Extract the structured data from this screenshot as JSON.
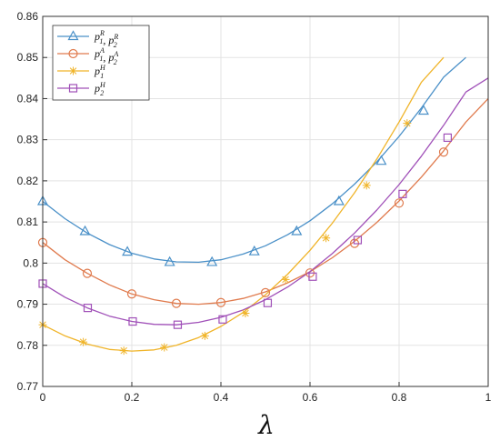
{
  "chart_data": {
    "type": "line",
    "title": "",
    "xlabel": "λ",
    "ylabel": "",
    "xlim": [
      0,
      1
    ],
    "ylim": [
      0.77,
      0.86
    ],
    "x_ticks": [
      0,
      0.2,
      0.4,
      0.6,
      0.8,
      1
    ],
    "x_tick_labels": [
      "0",
      "0.2",
      "0.4",
      "0.6",
      "0.8",
      "1"
    ],
    "y_ticks": [
      0.77,
      0.78,
      0.79,
      0.8,
      0.81,
      0.82,
      0.83,
      0.84,
      0.85,
      0.86
    ],
    "y_tick_labels": [
      "0.77",
      "0.78",
      "0.79",
      "0.8",
      "0.81",
      "0.82",
      "0.83",
      "0.84",
      "0.85",
      "0.86"
    ],
    "grid": true,
    "legend_position": "top-left",
    "series": [
      {
        "name": "p1R, p2R",
        "legend": {
          "a": "p",
          "a_sub": "1",
          "a_sup": "R",
          "b": "p",
          "b_sub": "2",
          "b_sup": "R"
        },
        "color": "#4a90c8",
        "marker": "triangle",
        "curve_x": [
          0,
          0.05,
          0.1,
          0.15,
          0.2,
          0.25,
          0.3,
          0.35,
          0.4,
          0.45,
          0.5,
          0.55,
          0.6,
          0.65,
          0.7,
          0.75,
          0.8,
          0.85,
          0.9,
          0.95
        ],
        "curve_y": [
          0.815,
          0.8108,
          0.8073,
          0.8045,
          0.8024,
          0.801,
          0.8003,
          0.8002,
          0.8008,
          0.8022,
          0.8042,
          0.8069,
          0.8103,
          0.8144,
          0.8192,
          0.8246,
          0.8308,
          0.8377,
          0.8452,
          0.85
        ],
        "marker_x": [
          0,
          0.095,
          0.19,
          0.285,
          0.38,
          0.475,
          0.57,
          0.665,
          0.76,
          0.855
        ],
        "marker_y": [
          0.815,
          0.8077,
          0.8027,
          0.8002,
          0.8002,
          0.8028,
          0.8077,
          0.815,
          0.8248,
          0.837
        ]
      },
      {
        "name": "p1A, p2A",
        "legend": {
          "a": "p",
          "a_sub": "1",
          "a_sup": "A",
          "b": "p",
          "b_sub": "2",
          "b_sup": "A"
        },
        "color": "#e07b4e",
        "marker": "circle",
        "curve_x": [
          0,
          0.05,
          0.1,
          0.15,
          0.2,
          0.25,
          0.3,
          0.35,
          0.4,
          0.45,
          0.5,
          0.55,
          0.6,
          0.65,
          0.7,
          0.75,
          0.8,
          0.85,
          0.9,
          0.95,
          1.0
        ],
        "curve_y": [
          0.805,
          0.8008,
          0.7975,
          0.7947,
          0.7925,
          0.7911,
          0.7902,
          0.79,
          0.7904,
          0.7914,
          0.793,
          0.7952,
          0.7979,
          0.8013,
          0.8053,
          0.8099,
          0.8151,
          0.8209,
          0.8273,
          0.8343,
          0.84
        ],
        "marker_x": [
          0,
          0.1,
          0.2,
          0.3,
          0.4,
          0.5,
          0.6,
          0.7,
          0.8,
          0.9
        ],
        "marker_y": [
          0.805,
          0.7975,
          0.7925,
          0.7902,
          0.7904,
          0.7928,
          0.7976,
          0.8048,
          0.8146,
          0.827
        ]
      },
      {
        "name": "p1H",
        "legend": {
          "a": "p",
          "a_sub": "1",
          "a_sup": "H",
          "b": "",
          "b_sub": "",
          "b_sup": ""
        },
        "color": "#f0b429",
        "marker": "asterisk",
        "curve_x": [
          0,
          0.05,
          0.1,
          0.15,
          0.2,
          0.25,
          0.3,
          0.35,
          0.4,
          0.45,
          0.5,
          0.55,
          0.6,
          0.65,
          0.7,
          0.75,
          0.8,
          0.85,
          0.9
        ],
        "curve_y": [
          0.785,
          0.7823,
          0.7803,
          0.779,
          0.7786,
          0.7789,
          0.78,
          0.7819,
          0.7846,
          0.788,
          0.7923,
          0.7973,
          0.8031,
          0.8097,
          0.8171,
          0.8253,
          0.8343,
          0.844,
          0.85
        ],
        "marker_x": [
          0,
          0.091,
          0.182,
          0.273,
          0.364,
          0.455,
          0.545,
          0.636,
          0.727,
          0.818
        ],
        "marker_y": [
          0.785,
          0.7808,
          0.7787,
          0.7795,
          0.7823,
          0.7878,
          0.796,
          0.8061,
          0.8189,
          0.834
        ]
      },
      {
        "name": "p2H",
        "legend": {
          "a": "p",
          "a_sub": "2",
          "a_sup": "H",
          "b": "",
          "b_sub": "",
          "b_sup": ""
        },
        "color": "#a050b8",
        "marker": "square",
        "curve_x": [
          0,
          0.05,
          0.1,
          0.15,
          0.2,
          0.25,
          0.3,
          0.35,
          0.4,
          0.45,
          0.5,
          0.55,
          0.6,
          0.65,
          0.7,
          0.75,
          0.8,
          0.85,
          0.9,
          0.95,
          1.0
        ],
        "curve_y": [
          0.795,
          0.7917,
          0.7891,
          0.7871,
          0.7858,
          0.7851,
          0.785,
          0.7856,
          0.7868,
          0.7886,
          0.7911,
          0.7942,
          0.7979,
          0.8023,
          0.8073,
          0.8129,
          0.8191,
          0.826,
          0.8335,
          0.8416,
          0.845
        ],
        "marker_x": [
          0,
          0.101,
          0.202,
          0.303,
          0.404,
          0.505,
          0.606,
          0.707,
          0.808,
          0.909
        ],
        "marker_y": [
          0.795,
          0.7891,
          0.7858,
          0.785,
          0.7863,
          0.7903,
          0.7967,
          0.8056,
          0.8168,
          0.8305
        ]
      }
    ]
  }
}
